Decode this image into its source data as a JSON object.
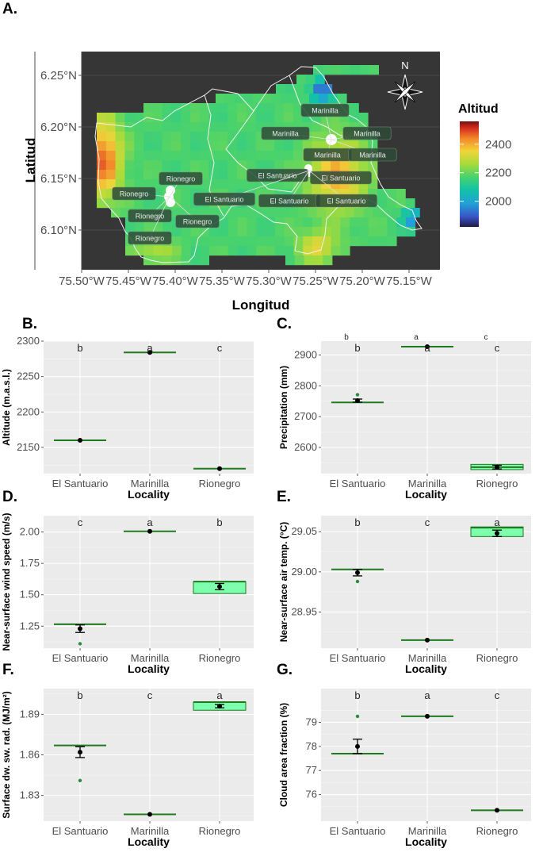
{
  "chart_data": [
    {
      "panel": "A.",
      "type": "heatmap",
      "xlabel": "Longitud",
      "ylabel": "Latitud",
      "x_ticks": [
        "75.50°W",
        "75.45°W",
        "75.40°W",
        "75.35°W",
        "75.30°W",
        "75.25°W",
        "75.20°W",
        "75.15°W"
      ],
      "y_ticks": [
        "6.25°N",
        "6.20°N",
        "6.15°N",
        "6.10°N"
      ],
      "legend": {
        "title": "Altitud",
        "ticks": [
          "2400",
          "2200",
          "2000"
        ],
        "range": [
          1820,
          2560
        ]
      },
      "compass": "N",
      "site_labels": [
        "Marinilla",
        "Marinilla",
        "Marinilla",
        "Marinilla",
        "Marinilla",
        "El Santuario",
        "El Santuario",
        "El Santuario",
        "El Santuario",
        "El Santuario",
        "Rionegro",
        "Rionegro",
        "Rionegro",
        "Rionegro",
        "Rionegro"
      ]
    },
    {
      "panel": "B.",
      "type": "scatter",
      "xlabel": "Locality",
      "ylabel": "Altitude (m.a.s.l.)",
      "categories": [
        "El Santuario",
        "Marinilla",
        "Rionegro"
      ],
      "ylim": [
        2113,
        2300
      ],
      "yticks": [
        2150,
        2200,
        2250,
        2300
      ],
      "means": [
        2160,
        2284,
        2120
      ],
      "errors": [
        0,
        0,
        0
      ],
      "medians": [
        2160,
        2284,
        2120
      ],
      "box": [
        null,
        null,
        null
      ],
      "outliers": [
        [],
        [],
        []
      ],
      "letters": [
        "b",
        "a",
        "c"
      ],
      "letters_top": []
    },
    {
      "panel": "C.",
      "type": "box",
      "xlabel": "Locality",
      "ylabel": "Precipitation (mm)",
      "categories": [
        "El Santuario",
        "Marinilla",
        "Rionegro"
      ],
      "ylim": [
        2515,
        2945
      ],
      "yticks": [
        2600,
        2700,
        2800,
        2900
      ],
      "means": [
        2752,
        2927,
        2536
      ],
      "errors": [
        5,
        0,
        6
      ],
      "medians": [
        2746,
        2927,
        2536
      ],
      "box": [
        null,
        null,
        [
          2528,
          2545
        ]
      ],
      "outliers": [
        [
          2771
        ],
        [],
        []
      ],
      "letters": [
        "b",
        "a",
        "c"
      ],
      "letters_top": [
        "b",
        "a",
        "c"
      ]
    },
    {
      "panel": "D.",
      "type": "box",
      "xlabel": "Locality",
      "ylabel": "Near-surface wind speed (m/s)",
      "categories": [
        "El Santuario",
        "Marinilla",
        "Rionegro"
      ],
      "ylim": [
        1.075,
        2.13
      ],
      "yticks": [
        1.25,
        1.5,
        1.75,
        2.0
      ],
      "means": [
        1.23,
        2.005,
        1.565
      ],
      "errors": [
        0.03,
        0,
        0.025
      ],
      "medians": [
        1.265,
        2.005,
        1.605
      ],
      "box": [
        null,
        null,
        [
          1.51,
          1.605
        ]
      ],
      "outliers": [
        [
          1.11
        ],
        [],
        []
      ],
      "letters": [
        "c",
        "a",
        "b"
      ],
      "letters_top": []
    },
    {
      "panel": "E.",
      "type": "box",
      "xlabel": "Locality",
      "ylabel": "Near-surface air temp. (°C)",
      "categories": [
        "El Santuario",
        "Marinilla",
        "Rionegro"
      ],
      "ylim": [
        28.905,
        29.07
      ],
      "yticks": [
        28.95,
        29.0,
        29.05
      ],
      "means": [
        28.999,
        28.915,
        29.048
      ],
      "errors": [
        0.004,
        0,
        0.004
      ],
      "medians": [
        29.003,
        28.915,
        29.055
      ],
      "box": [
        null,
        null,
        [
          29.044,
          29.056
        ]
      ],
      "outliers": [
        [
          28.988
        ],
        [],
        []
      ],
      "letters": [
        "b",
        "c",
        "a"
      ],
      "letters_top": []
    },
    {
      "panel": "F.",
      "type": "box",
      "xlabel": "Locality",
      "ylabel": "Surface dw. sw. rad. (MJ/m²)",
      "categories": [
        "El Santuario",
        "Marinilla",
        "Rionegro"
      ],
      "ylim": [
        1.811,
        1.909
      ],
      "yticks": [
        1.83,
        1.86,
        1.89
      ],
      "means": [
        1.862,
        1.816,
        1.896
      ],
      "errors": [
        0.004,
        0,
        0.0012
      ],
      "medians": [
        1.867,
        1.816,
        1.899
      ],
      "box": [
        null,
        null,
        [
          1.893,
          1.899
        ]
      ],
      "outliers": [
        [
          1.841
        ],
        [],
        []
      ],
      "letters": [
        "b",
        "c",
        "a"
      ],
      "letters_top": []
    },
    {
      "panel": "G.",
      "type": "box",
      "xlabel": "Locality",
      "ylabel": "Cloud area fraction (%)",
      "categories": [
        "El Santuario",
        "Marinilla",
        "Rionegro"
      ],
      "ylim": [
        74.9,
        80.4
      ],
      "yticks": [
        76,
        77,
        78,
        79
      ],
      "means": [
        78.0,
        79.25,
        75.35
      ],
      "errors": [
        0.3,
        0,
        0
      ],
      "medians": [
        77.7,
        79.25,
        75.35
      ],
      "box": [
        null,
        null,
        null
      ],
      "outliers": [
        [
          79.25
        ],
        [],
        []
      ],
      "letters": [
        "b",
        "a",
        "c"
      ],
      "letters_top": []
    }
  ]
}
